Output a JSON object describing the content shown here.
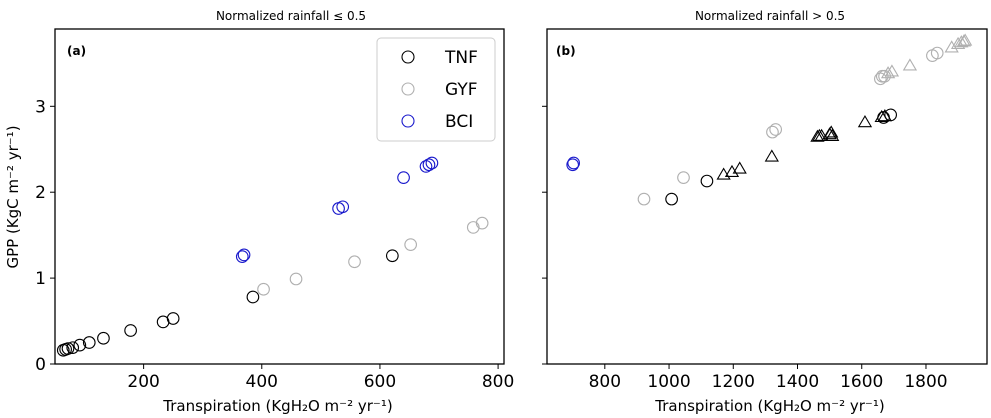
{
  "chart_data": [
    {
      "type": "scatter",
      "title": "Normalized rainfall  ≤ 0.5",
      "panel_label": "(a)",
      "xlabel": "Transpiration (KgH₂O m⁻² yr⁻¹)",
      "ylabel": "GPP (KgC m⁻² yr⁻¹)",
      "xlim": [
        50,
        810
      ],
      "ylim": [
        0,
        3.9
      ],
      "xticks": [
        "200",
        "400",
        "600",
        "800"
      ],
      "xtick_values": [
        200,
        400,
        600,
        800
      ],
      "yticks": [
        "0",
        "1",
        "2",
        "3"
      ],
      "ytick_values": [
        0,
        1,
        2,
        3
      ],
      "legend": {
        "placement": "top-right",
        "entries": [
          "TNF",
          "GYF",
          "BCI"
        ]
      },
      "series": [
        {
          "name": "TNF",
          "marker": "circle",
          "color": "#000000",
          "points": [
            [
              64,
              0.16
            ],
            [
              68,
              0.17
            ],
            [
              72,
              0.18
            ],
            [
              80,
              0.19
            ],
            [
              92,
              0.22
            ],
            [
              108,
              0.25
            ],
            [
              132,
              0.3
            ],
            [
              178,
              0.39
            ],
            [
              233,
              0.49
            ],
            [
              250,
              0.53
            ],
            [
              385,
              0.78
            ],
            [
              621,
              1.26
            ]
          ]
        },
        {
          "name": "GYF",
          "marker": "circle",
          "color": "#b0b0b0",
          "points": [
            [
              403,
              0.87
            ],
            [
              458,
              0.99
            ],
            [
              557,
              1.19
            ],
            [
              652,
              1.39
            ],
            [
              758,
              1.59
            ],
            [
              773,
              1.64
            ]
          ]
        },
        {
          "name": "BCI",
          "marker": "circle",
          "color": "#1a1acc",
          "points": [
            [
              367,
              1.25
            ],
            [
              370,
              1.27
            ],
            [
              530,
              1.81
            ],
            [
              537,
              1.83
            ],
            [
              640,
              2.17
            ],
            [
              678,
              2.3
            ],
            [
              683,
              2.32
            ],
            [
              688,
              2.34
            ]
          ]
        }
      ]
    },
    {
      "type": "scatter",
      "title": "Normalized rainfall  > 0.5",
      "panel_label": "(b)",
      "xlabel": "Transpiration (KgH₂O m⁻² yr⁻¹)",
      "ylabel": "",
      "xlim": [
        620,
        1990
      ],
      "ylim": [
        0,
        3.9
      ],
      "xticks": [
        "800",
        "1000",
        "1200",
        "1400",
        "1600",
        "1800"
      ],
      "xtick_values": [
        800,
        1000,
        1200,
        1400,
        1600,
        1800
      ],
      "series": [
        {
          "name": "",
          "marker": "circle",
          "color": "#000000",
          "points": [
            [
              1008,
              1.92
            ],
            [
              1118,
              2.13
            ],
            [
              1668,
              2.87
            ],
            [
              1690,
              2.9
            ]
          ]
        },
        {
          "name": "",
          "marker": "triangle",
          "color": "#000000",
          "points": [
            [
              1170,
              2.2
            ],
            [
              1196,
              2.23
            ],
            [
              1220,
              2.27
            ],
            [
              1320,
              2.41
            ],
            [
              1462,
              2.64
            ],
            [
              1468,
              2.65
            ],
            [
              1475,
              2.65
            ],
            [
              1500,
              2.67
            ],
            [
              1505,
              2.69
            ],
            [
              1508,
              2.65
            ],
            [
              1610,
              2.81
            ],
            [
              1662,
              2.87
            ],
            [
              1672,
              2.88
            ]
          ]
        },
        {
          "name": "",
          "marker": "circle",
          "color": "#b0b0b0",
          "points": [
            [
              922,
              1.92
            ],
            [
              1045,
              2.17
            ],
            [
              1322,
              2.7
            ],
            [
              1332,
              2.73
            ],
            [
              1658,
              3.32
            ],
            [
              1664,
              3.35
            ],
            [
              1671,
              3.35
            ],
            [
              1820,
              3.59
            ],
            [
              1835,
              3.62
            ]
          ]
        },
        {
          "name": "",
          "marker": "triangle",
          "color": "#b0b0b0",
          "points": [
            [
              1682,
              3.38
            ],
            [
              1694,
              3.4
            ],
            [
              1750,
              3.47
            ],
            [
              1880,
              3.68
            ],
            [
              1900,
              3.72
            ],
            [
              1910,
              3.74
            ],
            [
              1918,
              3.75
            ],
            [
              1922,
              3.76
            ]
          ]
        },
        {
          "name": "",
          "marker": "circle",
          "color": "#1a1acc",
          "points": [
            [
              700,
              2.32
            ],
            [
              703,
              2.34
            ]
          ]
        }
      ]
    }
  ]
}
